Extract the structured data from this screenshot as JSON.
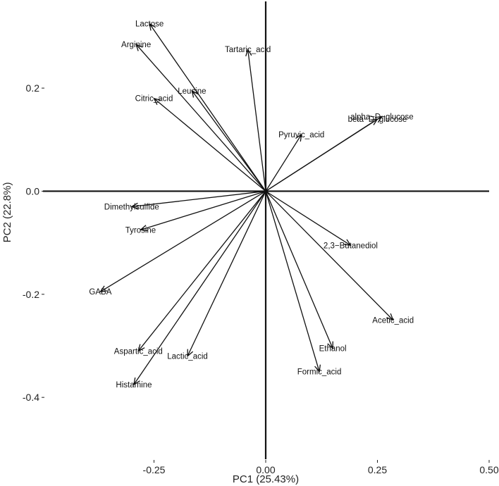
{
  "chart_data": {
    "type": "scatter",
    "subtype": "pca-loading-biplot",
    "xlabel": "PC1 (25.43%)",
    "ylabel": "PC2 (22.8%)",
    "xlim": [
      -0.5,
      0.5
    ],
    "ylim": [
      -0.52,
      0.36
    ],
    "x_ticks": [
      -0.25,
      0.0,
      0.25,
      0.5
    ],
    "x_tick_labels": [
      "-0.25",
      "0.00",
      "0.25",
      "0.50"
    ],
    "y_ticks": [
      -0.4,
      -0.2,
      0.0,
      0.2
    ],
    "y_tick_labels": [
      "-0.4",
      "-0.2",
      "0.0",
      "0.2"
    ],
    "grid": false,
    "variables": [
      {
        "label": "Lactose",
        "x": -0.26,
        "y": 0.325
      },
      {
        "label": "Arginine",
        "x": -0.29,
        "y": 0.285
      },
      {
        "label": "Tartaric_acid",
        "x": -0.04,
        "y": 0.275
      },
      {
        "label": "Leucine",
        "x": -0.165,
        "y": 0.195
      },
      {
        "label": "Citric_acid",
        "x": -0.25,
        "y": 0.18
      },
      {
        "label": "alpha−D−glucose",
        "x": 0.26,
        "y": 0.145
      },
      {
        "label": "beta−D−glucose",
        "x": 0.25,
        "y": 0.14
      },
      {
        "label": "Pyruvic_acid",
        "x": 0.08,
        "y": 0.11
      },
      {
        "label": "Dimethylsulfide",
        "x": -0.3,
        "y": -0.03
      },
      {
        "label": "Tyrosine",
        "x": -0.28,
        "y": -0.075
      },
      {
        "label": "2,3−Butanediol",
        "x": 0.19,
        "y": -0.105
      },
      {
        "label": "GABA",
        "x": -0.37,
        "y": -0.195
      },
      {
        "label": "Acetic_acid",
        "x": 0.285,
        "y": -0.25
      },
      {
        "label": "Aspartic_acid",
        "x": -0.285,
        "y": -0.31
      },
      {
        "label": "Lactic_acid",
        "x": -0.175,
        "y": -0.32
      },
      {
        "label": "Ethanol",
        "x": 0.15,
        "y": -0.305
      },
      {
        "label": "Formic_acid",
        "x": 0.12,
        "y": -0.35
      },
      {
        "label": "Histamine",
        "x": -0.295,
        "y": -0.375
      }
    ]
  }
}
